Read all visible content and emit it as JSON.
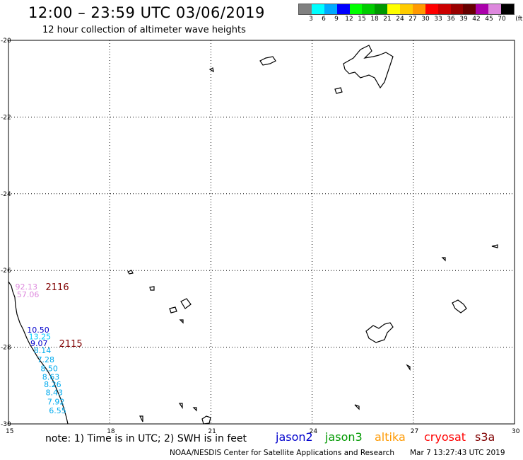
{
  "header": {
    "title": "12:00 – 23:59 UTC 03/06/2019",
    "subtitle": "12 hour collection of altimeter wave heights"
  },
  "legend": {
    "colors": [
      "#808080",
      "#00ffff",
      "#00aaff",
      "#0000ff",
      "#00ff00",
      "#00cc00",
      "#009900",
      "#ffff00",
      "#ffcc00",
      "#ff9900",
      "#ff0000",
      "#cc0000",
      "#990000",
      "#660000",
      "#aa00aa",
      "#dd88dd",
      "#000000"
    ],
    "labels": [
      "3",
      "6",
      "9",
      "12",
      "15",
      "18",
      "21",
      "24",
      "27",
      "30",
      "33",
      "36",
      "39",
      "42",
      "45",
      "70"
    ],
    "unit": "(ft)"
  },
  "chart_data": {
    "type": "scatter",
    "x_axis": {
      "range": [
        15,
        30
      ],
      "ticks": [
        "15",
        "18",
        "21",
        "24",
        "27",
        "30"
      ]
    },
    "y_axis": {
      "range": [
        -30,
        -20
      ],
      "ticks": [
        "-20",
        "-22",
        "-24",
        "-26",
        "-28",
        "-30"
      ]
    },
    "grid": true,
    "pass_labels": [
      {
        "text": "2116",
        "lon": 16.1,
        "lat": -26.42,
        "color": "#800000"
      },
      {
        "text": "2115",
        "lon": 16.5,
        "lat": -27.9,
        "color": "#800000"
      }
    ],
    "swh_readings": [
      {
        "text": "92.13",
        "lon": 15.2,
        "lat": -26.42,
        "color": "#dd88dd"
      },
      {
        "text": "57.06",
        "lon": 15.25,
        "lat": -26.62,
        "color": "#dd88dd"
      },
      {
        "text": "10.50",
        "lon": 15.55,
        "lat": -27.55,
        "color": "#0000cc"
      },
      {
        "text": "13.25",
        "lon": 15.6,
        "lat": -27.72,
        "color": "#00ccff"
      },
      {
        "text": "9.07",
        "lon": 15.65,
        "lat": -27.9,
        "color": "#0000cc"
      },
      {
        "text": "8.14",
        "lon": 15.75,
        "lat": -28.08,
        "color": "#00aaee"
      },
      {
        "text": "7.28",
        "lon": 15.85,
        "lat": -28.32,
        "color": "#00aaee"
      },
      {
        "text": "8.50",
        "lon": 15.95,
        "lat": -28.55,
        "color": "#00aaee"
      },
      {
        "text": "8.63",
        "lon": 16.0,
        "lat": -28.77,
        "color": "#00aaee"
      },
      {
        "text": "8.26",
        "lon": 16.05,
        "lat": -28.97,
        "color": "#00aaee"
      },
      {
        "text": "8.43",
        "lon": 16.1,
        "lat": -29.18,
        "color": "#00aaee"
      },
      {
        "text": "7.92",
        "lon": 16.15,
        "lat": -29.42,
        "color": "#00aaee"
      },
      {
        "text": "6.55",
        "lon": 16.2,
        "lat": -29.65,
        "color": "#00aaee"
      }
    ]
  },
  "footer": {
    "note": "note: 1) Time is in UTC; 2) SWH is in feet",
    "satellites": [
      {
        "name": "jason2",
        "color": "#0000cc"
      },
      {
        "name": "jason3",
        "color": "#009900"
      },
      {
        "name": "altika",
        "color": "#ff9900"
      },
      {
        "name": "cryosat",
        "color": "#ff0000"
      },
      {
        "name": "s3a",
        "color": "#800000"
      }
    ],
    "credit": "NOAA/NESDIS Center for Satellite Applications and Research",
    "timestamp": "Mar  7 13:27:43 UTC 2019"
  }
}
